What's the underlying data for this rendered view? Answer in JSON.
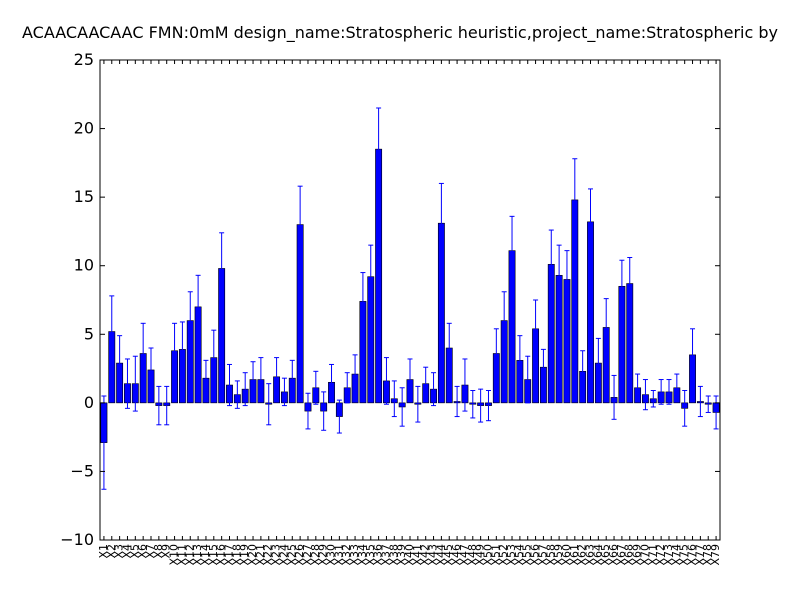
{
  "chart_data": {
    "type": "bar",
    "title": "ACAACAACAAC  FMN:0mM  design_name:Stratospheric heuristic,project_name:Stratospheric by",
    "xlabel": "",
    "ylabel": "",
    "ylim": [
      -10,
      25
    ],
    "yticks": [
      "−10",
      "−5",
      "0",
      "5",
      "10",
      "15",
      "20",
      "25"
    ],
    "bar_color": "#0000ff",
    "error_color": "#0000ff",
    "categories": [
      "X1",
      "X2",
      "X3",
      "X4",
      "X5",
      "X6",
      "X7",
      "X8",
      "X9",
      "X10",
      "X11",
      "X12",
      "X13",
      "X14",
      "X15",
      "X16",
      "X17",
      "X18",
      "X19",
      "X20",
      "X21",
      "X22",
      "X23",
      "X24",
      "X25",
      "X26",
      "X27",
      "X28",
      "X29",
      "X30",
      "X31",
      "X32",
      "X33",
      "X34",
      "X35",
      "X36",
      "X37",
      "X38",
      "X39",
      "X40",
      "X41",
      "X42",
      "X43",
      "X44",
      "X45",
      "X46",
      "X47",
      "X48",
      "X49",
      "X50",
      "X51",
      "X52",
      "X53",
      "X54",
      "X55",
      "X56",
      "X57",
      "X58",
      "X59",
      "X60",
      "X61",
      "X62",
      "X63",
      "X64",
      "X65",
      "X66",
      "X67",
      "X68",
      "X69",
      "X70",
      "X71",
      "X72",
      "X73",
      "X74",
      "X75",
      "X76",
      "X77",
      "X78",
      "X79"
    ],
    "values": [
      -2.9,
      5.2,
      2.9,
      1.4,
      1.4,
      3.6,
      2.4,
      -0.2,
      -0.2,
      3.8,
      3.9,
      6.0,
      7.0,
      1.8,
      3.3,
      9.8,
      1.3,
      0.6,
      1.0,
      1.7,
      1.7,
      -0.1,
      1.9,
      0.8,
      1.8,
      13.0,
      -0.6,
      1.1,
      -0.6,
      1.5,
      -1.0,
      1.1,
      2.1,
      7.4,
      9.2,
      18.5,
      1.6,
      0.3,
      -0.3,
      1.7,
      -0.1,
      1.4,
      1.0,
      13.1,
      4.0,
      0.1,
      1.3,
      -0.1,
      -0.2,
      -0.2,
      3.6,
      6.0,
      11.1,
      3.1,
      1.7,
      5.4,
      2.6,
      10.1,
      9.3,
      9.0,
      14.8,
      2.3,
      13.2,
      2.9,
      5.5,
      0.4,
      8.5,
      8.7,
      1.1,
      0.6,
      0.3,
      0.8,
      0.8,
      1.1,
      -0.4,
      3.5,
      0.1,
      -0.1,
      -0.7
    ],
    "errors": [
      3.4,
      2.6,
      2.0,
      1.8,
      2.0,
      2.2,
      1.6,
      1.4,
      1.4,
      2.0,
      2.0,
      2.1,
      2.3,
      1.3,
      2.0,
      2.6,
      1.5,
      1.0,
      1.2,
      1.3,
      1.6,
      1.5,
      1.4,
      1.0,
      1.3,
      2.8,
      1.3,
      1.2,
      1.4,
      1.3,
      1.2,
      1.1,
      1.4,
      2.1,
      2.3,
      3.0,
      1.7,
      1.3,
      1.4,
      1.5,
      1.3,
      1.2,
      1.2,
      2.9,
      1.8,
      1.1,
      1.9,
      1.0,
      1.2,
      1.1,
      1.8,
      2.1,
      2.5,
      1.8,
      1.7,
      2.1,
      1.3,
      2.5,
      2.2,
      2.1,
      3.0,
      1.5,
      2.4,
      1.8,
      2.1,
      1.6,
      1.9,
      1.9,
      1.0,
      1.1,
      0.6,
      0.9,
      0.9,
      1.0,
      1.3,
      1.9,
      1.1,
      0.6,
      1.2
    ]
  }
}
